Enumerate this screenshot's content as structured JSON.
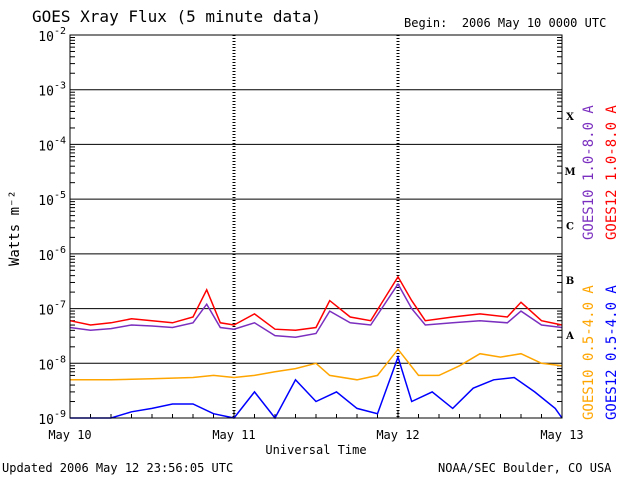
{
  "header": {
    "title": "GOES Xray Flux (5 minute data)",
    "begin_label": "Begin:",
    "begin_value": "2006 May 10 0000 UTC"
  },
  "footer": {
    "updated": "Updated 2006 May 12 23:56:05 UTC",
    "credit": "NOAA/SEC Boulder, CO USA"
  },
  "chart_data": {
    "type": "line",
    "title": "GOES Xray Flux (5 minute data)",
    "xlabel": "Universal Time",
    "ylabel": "Watts m⁻²",
    "yscale": "log",
    "ylim": [
      1e-09,
      0.01
    ],
    "xlim": [
      "2006-05-10 00:00",
      "2006-05-13 00:00"
    ],
    "x_tick_labels": [
      "May 10",
      "May 11",
      "May 12",
      "May 13"
    ],
    "y_tick_labels": [
      {
        "base": "10",
        "exp": "-2"
      },
      {
        "base": "10",
        "exp": "-3"
      },
      {
        "base": "10",
        "exp": "-4"
      },
      {
        "base": "10",
        "exp": "-5"
      },
      {
        "base": "10",
        "exp": "-6"
      },
      {
        "base": "10",
        "exp": "-7"
      },
      {
        "base": "10",
        "exp": "-8"
      },
      {
        "base": "10",
        "exp": "-9"
      }
    ],
    "flare_classes": [
      {
        "label": "X",
        "flux": 0.0001
      },
      {
        "label": "M",
        "flux": 1e-05
      },
      {
        "label": "C",
        "flux": 1e-06
      },
      {
        "label": "B",
        "flux": 1e-07
      },
      {
        "label": "A",
        "flux": 1e-08
      }
    ],
    "grid": "horizontal lines at each decade",
    "series": [
      {
        "name": "GOES10 1.0-8.0 A",
        "color": "#7b2fbf",
        "points": [
          [
            "2006-05-10 00:00",
            4.5e-08
          ],
          [
            "2006-05-10 03:00",
            4e-08
          ],
          [
            "2006-05-10 06:00",
            4.3e-08
          ],
          [
            "2006-05-10 09:00",
            5e-08
          ],
          [
            "2006-05-10 12:00",
            4.8e-08
          ],
          [
            "2006-05-10 15:00",
            4.5e-08
          ],
          [
            "2006-05-10 18:00",
            5.5e-08
          ],
          [
            "2006-05-10 20:00",
            1.2e-07
          ],
          [
            "2006-05-10 22:00",
            4.5e-08
          ],
          [
            "2006-05-11 00:00",
            4.2e-08
          ],
          [
            "2006-05-11 03:00",
            5.5e-08
          ],
          [
            "2006-05-11 06:00",
            3.2e-08
          ],
          [
            "2006-05-11 09:00",
            3e-08
          ],
          [
            "2006-05-11 12:00",
            3.5e-08
          ],
          [
            "2006-05-11 14:00",
            9e-08
          ],
          [
            "2006-05-11 17:00",
            5.5e-08
          ],
          [
            "2006-05-11 20:00",
            5e-08
          ],
          [
            "2006-05-12 00:00",
            2.8e-07
          ],
          [
            "2006-05-12 02:00",
            1e-07
          ],
          [
            "2006-05-12 04:00",
            5e-08
          ],
          [
            "2006-05-12 08:00",
            5.5e-08
          ],
          [
            "2006-05-12 12:00",
            6e-08
          ],
          [
            "2006-05-12 16:00",
            5.5e-08
          ],
          [
            "2006-05-12 18:00",
            9e-08
          ],
          [
            "2006-05-12 21:00",
            5e-08
          ],
          [
            "2006-05-13 00:00",
            4.5e-08
          ]
        ]
      },
      {
        "name": "GOES12 1.0-8.0 A",
        "color": "#ff0000",
        "points": [
          [
            "2006-05-10 00:00",
            6e-08
          ],
          [
            "2006-05-10 03:00",
            5e-08
          ],
          [
            "2006-05-10 06:00",
            5.5e-08
          ],
          [
            "2006-05-10 09:00",
            6.5e-08
          ],
          [
            "2006-05-10 12:00",
            6e-08
          ],
          [
            "2006-05-10 15:00",
            5.5e-08
          ],
          [
            "2006-05-10 18:00",
            7e-08
          ],
          [
            "2006-05-10 20:00",
            2.2e-07
          ],
          [
            "2006-05-10 22:00",
            5.5e-08
          ],
          [
            "2006-05-11 00:00",
            5e-08
          ],
          [
            "2006-05-11 03:00",
            8e-08
          ],
          [
            "2006-05-11 06:00",
            4.2e-08
          ],
          [
            "2006-05-11 09:00",
            4e-08
          ],
          [
            "2006-05-11 12:00",
            4.5e-08
          ],
          [
            "2006-05-11 14:00",
            1.4e-07
          ],
          [
            "2006-05-11 17:00",
            7e-08
          ],
          [
            "2006-05-11 20:00",
            6e-08
          ],
          [
            "2006-05-12 00:00",
            3.8e-07
          ],
          [
            "2006-05-12 02:00",
            1.4e-07
          ],
          [
            "2006-05-12 04:00",
            6e-08
          ],
          [
            "2006-05-12 08:00",
            7e-08
          ],
          [
            "2006-05-12 12:00",
            8e-08
          ],
          [
            "2006-05-12 16:00",
            7e-08
          ],
          [
            "2006-05-12 18:00",
            1.3e-07
          ],
          [
            "2006-05-12 21:00",
            6e-08
          ],
          [
            "2006-05-13 00:00",
            5e-08
          ]
        ]
      },
      {
        "name": "GOES10 0.5-4.0 A",
        "color": "#ffa500",
        "points": [
          [
            "2006-05-10 00:00",
            5e-09
          ],
          [
            "2006-05-10 06:00",
            5e-09
          ],
          [
            "2006-05-10 12:00",
            5.2e-09
          ],
          [
            "2006-05-10 18:00",
            5.5e-09
          ],
          [
            "2006-05-10 21:00",
            6e-09
          ],
          [
            "2006-05-11 00:00",
            5.5e-09
          ],
          [
            "2006-05-11 03:00",
            6e-09
          ],
          [
            "2006-05-11 06:00",
            7e-09
          ],
          [
            "2006-05-11 09:00",
            8e-09
          ],
          [
            "2006-05-11 12:00",
            1e-08
          ],
          [
            "2006-05-11 14:00",
            6e-09
          ],
          [
            "2006-05-11 18:00",
            5e-09
          ],
          [
            "2006-05-11 21:00",
            6e-09
          ],
          [
            "2006-05-12 00:00",
            1.8e-08
          ],
          [
            "2006-05-12 03:00",
            6e-09
          ],
          [
            "2006-05-12 06:00",
            6e-09
          ],
          [
            "2006-05-12 09:00",
            9e-09
          ],
          [
            "2006-05-12 12:00",
            1.5e-08
          ],
          [
            "2006-05-12 15:00",
            1.3e-08
          ],
          [
            "2006-05-12 18:00",
            1.5e-08
          ],
          [
            "2006-05-12 21:00",
            1e-08
          ],
          [
            "2006-05-13 00:00",
            9e-09
          ]
        ]
      },
      {
        "name": "GOES12 0.5-4.0 A",
        "color": "#0000ff",
        "points": [
          [
            "2006-05-10 00:00",
            1e-09
          ],
          [
            "2006-05-10 06:00",
            1e-09
          ],
          [
            "2006-05-10 09:00",
            1.3e-09
          ],
          [
            "2006-05-10 12:00",
            1.5e-09
          ],
          [
            "2006-05-10 15:00",
            1.8e-09
          ],
          [
            "2006-05-10 18:00",
            1.8e-09
          ],
          [
            "2006-05-10 21:00",
            1.2e-09
          ],
          [
            "2006-05-11 00:00",
            1e-09
          ],
          [
            "2006-05-11 03:00",
            3e-09
          ],
          [
            "2006-05-11 06:00",
            1e-09
          ],
          [
            "2006-05-11 09:00",
            5e-09
          ],
          [
            "2006-05-11 12:00",
            2e-09
          ],
          [
            "2006-05-11 15:00",
            3e-09
          ],
          [
            "2006-05-11 18:00",
            1.5e-09
          ],
          [
            "2006-05-11 21:00",
            1.2e-09
          ],
          [
            "2006-05-12 00:00",
            1.3e-08
          ],
          [
            "2006-05-12 02:00",
            2e-09
          ],
          [
            "2006-05-12 05:00",
            3e-09
          ],
          [
            "2006-05-12 08:00",
            1.5e-09
          ],
          [
            "2006-05-12 11:00",
            3.5e-09
          ],
          [
            "2006-05-12 14:00",
            5e-09
          ],
          [
            "2006-05-12 17:00",
            5.5e-09
          ],
          [
            "2006-05-12 20:00",
            3e-09
          ],
          [
            "2006-05-12 23:00",
            1.5e-09
          ],
          [
            "2006-05-13 00:00",
            1e-09
          ]
        ]
      }
    ]
  }
}
